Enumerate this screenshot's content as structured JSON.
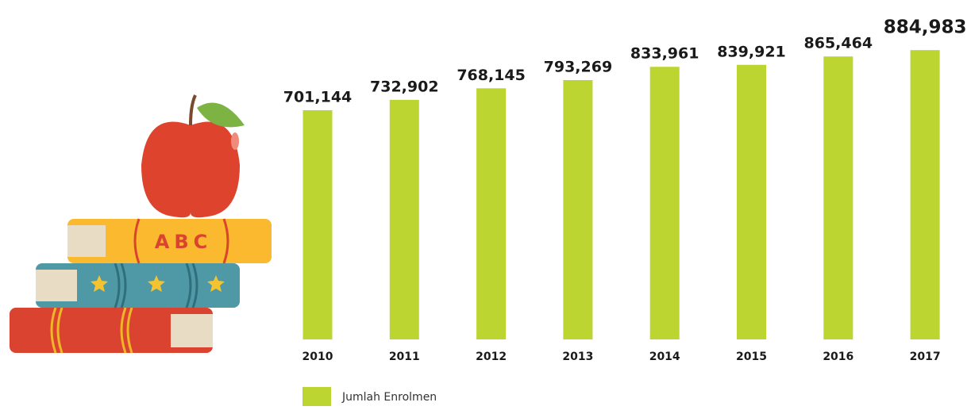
{
  "chart_data": {
    "type": "bar",
    "categories": [
      "2010",
      "2011",
      "2012",
      "2013",
      "2014",
      "2015",
      "2016",
      "2017"
    ],
    "series": [
      {
        "name": "Jumlah Enrolmen",
        "color": "#bcd530",
        "values": [
          701144,
          732902,
          768145,
          793269,
          833961,
          839921,
          865464,
          884983
        ],
        "value_labels": [
          "701,144",
          "732,902",
          "768,145",
          "793,269",
          "833,961",
          "839,921",
          "865,464",
          "884,983"
        ]
      }
    ],
    "ylim": [
      0,
      900000
    ],
    "illustration": {
      "book_label": "ABC"
    }
  }
}
